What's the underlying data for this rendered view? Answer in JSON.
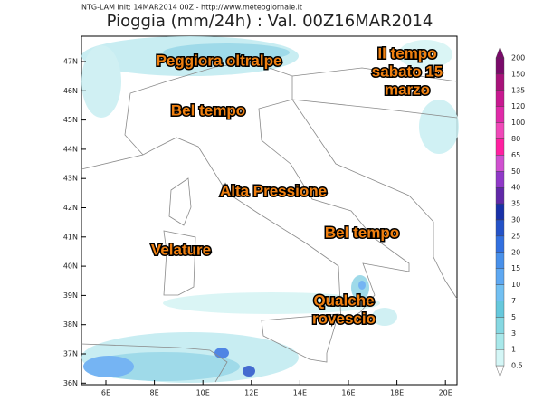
{
  "header": {
    "info": "NTG-LAM init: 14MAR2014 00Z - http://www.meteogiornale.it",
    "title": "Pioggia (mm/24h) : Val. 00Z16MAR2014"
  },
  "map": {
    "lat_labels": [
      "47N",
      "46N",
      "45N",
      "44N",
      "43N",
      "42N",
      "41N",
      "40N",
      "39N",
      "38N",
      "37N",
      "36N"
    ],
    "lon_labels": [
      "6E",
      "8E",
      "10E",
      "12E",
      "14E",
      "16E",
      "18E",
      "20E"
    ]
  },
  "annotations": [
    {
      "lines": [
        "Peggiora oltralpe"
      ]
    },
    {
      "lines": [
        "Il tempo",
        "sabato 15",
        "marzo"
      ]
    },
    {
      "lines": [
        "Bel tempo"
      ]
    },
    {
      "lines": [
        "Alta Pressione"
      ]
    },
    {
      "lines": [
        "Velature"
      ]
    },
    {
      "lines": [
        "Bel tempo"
      ]
    },
    {
      "lines": [
        "Qualche",
        "rovescio"
      ]
    }
  ],
  "colorbar": {
    "labels": [
      "200",
      "150",
      "135",
      "120",
      "100",
      "80",
      "65",
      "50",
      "40",
      "35",
      "30",
      "25",
      "20",
      "15",
      "10",
      "7",
      "5",
      "3",
      "1",
      "0.5"
    ],
    "colors": [
      "#7a0a6a",
      "#a8127a",
      "#c81890",
      "#e02aa8",
      "#f048b8",
      "#ff20a0",
      "#d050d0",
      "#9038c8",
      "#6028a8",
      "#1830a8",
      "#2452c8",
      "#3270e0",
      "#4890ea",
      "#5ea8f2",
      "#72c0f2",
      "#66c8dc",
      "#86d8e2",
      "#a8e8ea",
      "#d4f6f6"
    ]
  }
}
